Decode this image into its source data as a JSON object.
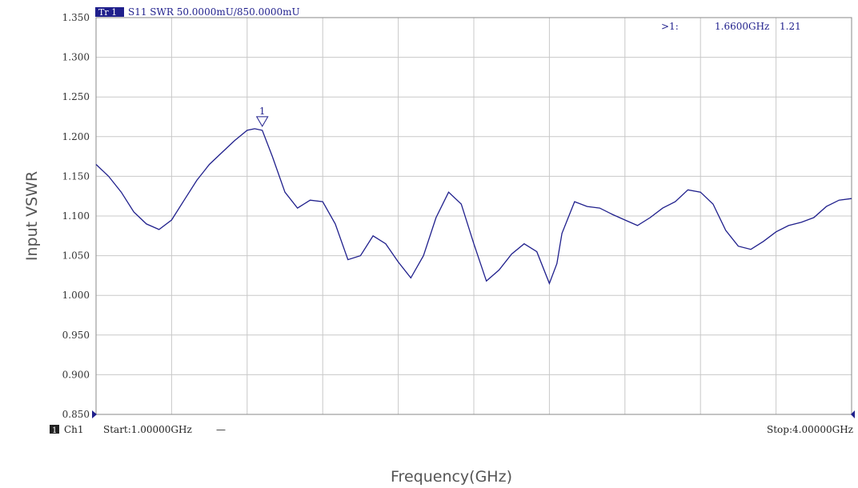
{
  "trace_header": {
    "tag": "Tr 1",
    "text": "S11  SWR  50.0000mU/850.0000mU"
  },
  "marker_readout": {
    "symbol": ">1:",
    "frequency": "1.6600GHz",
    "value": "1.21"
  },
  "marker_label": "1",
  "channel_footer": {
    "badge": "1",
    "channel": "Ch1",
    "start": "Start:1.00000GHz",
    "dash": "—",
    "stop": "Stop:4.00000GHz"
  },
  "colors": {
    "trace": "#1f1f8c",
    "grid": "#c8c8c8",
    "frame": "#8a8a8a",
    "marker": "#1f1f8c"
  },
  "chart_data": {
    "type": "line",
    "title": "",
    "xlabel": "Frequency(GHz)",
    "ylabel": "Input VSWR",
    "xlim": [
      1.0,
      4.0
    ],
    "ylim": [
      0.85,
      1.35
    ],
    "y_ticks": [
      "1.350",
      "1.300",
      "1.250",
      "1.200",
      "1.150",
      "1.100",
      "1.050",
      "1.000",
      "0.950",
      "0.900",
      "0.850"
    ],
    "x_divisions": 10,
    "grid": true,
    "marker": {
      "label": "1",
      "x": 1.66,
      "y": 1.21
    },
    "series": [
      {
        "x": [
          1.0,
          1.05,
          1.1,
          1.15,
          1.2,
          1.25,
          1.3,
          1.35,
          1.4,
          1.45,
          1.5,
          1.55,
          1.6,
          1.63,
          1.66,
          1.7,
          1.75,
          1.8,
          1.85,
          1.9,
          1.95,
          2.0,
          2.05,
          2.1,
          2.15,
          2.2,
          2.25,
          2.3,
          2.35,
          2.4,
          2.45,
          2.5,
          2.55,
          2.6,
          2.65,
          2.7,
          2.75,
          2.8,
          2.83,
          2.85,
          2.9,
          2.95,
          3.0,
          3.05,
          3.1,
          3.15,
          3.2,
          3.25,
          3.3,
          3.35,
          3.4,
          3.45,
          3.5,
          3.55,
          3.6,
          3.65,
          3.7,
          3.75,
          3.8,
          3.85,
          3.9,
          3.95,
          4.0
        ],
        "y": [
          1.165,
          1.15,
          1.13,
          1.105,
          1.09,
          1.083,
          1.095,
          1.12,
          1.145,
          1.165,
          1.18,
          1.195,
          1.208,
          1.21,
          1.208,
          1.175,
          1.13,
          1.11,
          1.12,
          1.118,
          1.09,
          1.045,
          1.05,
          1.075,
          1.065,
          1.042,
          1.022,
          1.05,
          1.098,
          1.13,
          1.115,
          1.065,
          1.018,
          1.032,
          1.052,
          1.065,
          1.055,
          1.015,
          1.04,
          1.078,
          1.118,
          1.112,
          1.11,
          1.102,
          1.095,
          1.088,
          1.098,
          1.11,
          1.118,
          1.133,
          1.13,
          1.115,
          1.082,
          1.062,
          1.058,
          1.068,
          1.08,
          1.088,
          1.092,
          1.098,
          1.112,
          1.12,
          1.122
        ]
      }
    ]
  }
}
